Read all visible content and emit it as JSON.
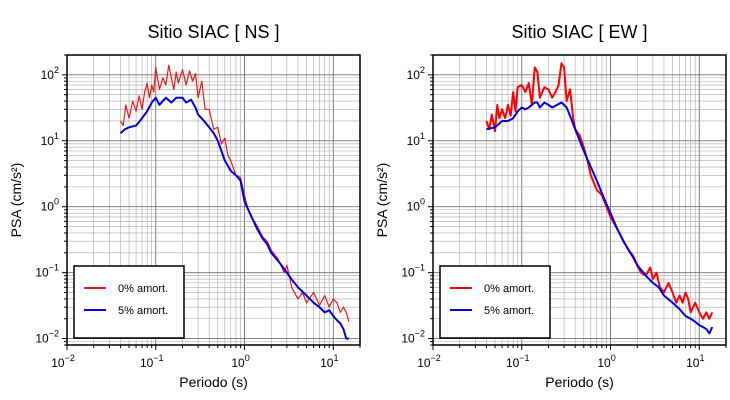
{
  "chart_data": [
    {
      "type": "line",
      "title": "Sitio SIAC [ NS ]",
      "xlabel": "Periodo (s)",
      "ylabel": "PSA (cm/s²)",
      "xscale": "log",
      "yscale": "log",
      "xlim": [
        0.01,
        20
      ],
      "ylim": [
        0.008,
        200
      ],
      "grid": true,
      "legend_position": "bottom-left",
      "xticks": [
        {
          "value": 0.01,
          "base": "10",
          "exp": "−2"
        },
        {
          "value": 0.1,
          "base": "10",
          "exp": "−1"
        },
        {
          "value": 1,
          "base": "10",
          "exp": "0"
        },
        {
          "value": 10,
          "base": "10",
          "exp": "1"
        }
      ],
      "yticks": [
        {
          "value": 0.01,
          "base": "10",
          "exp": "−2"
        },
        {
          "value": 0.1,
          "base": "10",
          "exp": "−1"
        },
        {
          "value": 1,
          "base": "10",
          "exp": "0"
        },
        {
          "value": 10,
          "base": "10",
          "exp": "1"
        },
        {
          "value": 100,
          "base": "10",
          "exp": "2"
        }
      ],
      "series": [
        {
          "name": "0% amort.",
          "color": "#e41a1c",
          "width": 1.2,
          "points": [
            [
              0.04,
              20
            ],
            [
              0.043,
              17
            ],
            [
              0.046,
              35
            ],
            [
              0.05,
              22
            ],
            [
              0.055,
              40
            ],
            [
              0.06,
              28
            ],
            [
              0.065,
              48
            ],
            [
              0.07,
              30
            ],
            [
              0.075,
              55
            ],
            [
              0.08,
              75
            ],
            [
              0.085,
              45
            ],
            [
              0.09,
              70
            ],
            [
              0.095,
              55
            ],
            [
              0.1,
              130
            ],
            [
              0.11,
              60
            ],
            [
              0.12,
              90
            ],
            [
              0.13,
              70
            ],
            [
              0.14,
              140
            ],
            [
              0.15,
              90
            ],
            [
              0.16,
              60
            ],
            [
              0.17,
              110
            ],
            [
              0.18,
              75
            ],
            [
              0.2,
              120
            ],
            [
              0.22,
              70
            ],
            [
              0.24,
              115
            ],
            [
              0.26,
              80
            ],
            [
              0.28,
              105
            ],
            [
              0.3,
              45
            ],
            [
              0.33,
              80
            ],
            [
              0.36,
              30
            ],
            [
              0.4,
              30
            ],
            [
              0.45,
              15
            ],
            [
              0.5,
              16
            ],
            [
              0.55,
              9
            ],
            [
              0.6,
              11
            ],
            [
              0.65,
              6
            ],
            [
              0.7,
              5
            ],
            [
              0.8,
              3
            ],
            [
              0.9,
              2.8
            ],
            [
              1.0,
              1.5
            ],
            [
              1.1,
              0.9
            ],
            [
              1.2,
              0.7
            ],
            [
              1.4,
              0.5
            ],
            [
              1.6,
              0.35
            ],
            [
              1.8,
              0.3
            ],
            [
              2.0,
              0.22
            ],
            [
              2.4,
              0.16
            ],
            [
              2.8,
              0.1
            ],
            [
              3.0,
              0.13
            ],
            [
              3.4,
              0.06
            ],
            [
              4.0,
              0.04
            ],
            [
              4.5,
              0.05
            ],
            [
              5.0,
              0.035
            ],
            [
              6.0,
              0.05
            ],
            [
              7.0,
              0.032
            ],
            [
              8.0,
              0.045
            ],
            [
              9.0,
              0.03
            ],
            [
              10.0,
              0.04
            ],
            [
              11.0,
              0.035
            ],
            [
              12.0,
              0.025
            ],
            [
              13.0,
              0.03
            ],
            [
              14.0,
              0.025
            ],
            [
              15.0,
              0.018
            ]
          ]
        },
        {
          "name": "5% amort.",
          "color": "#0000e6",
          "width": 2,
          "points": [
            [
              0.04,
              13
            ],
            [
              0.045,
              15
            ],
            [
              0.05,
              16
            ],
            [
              0.06,
              17
            ],
            [
              0.07,
              22
            ],
            [
              0.08,
              28
            ],
            [
              0.09,
              38
            ],
            [
              0.1,
              45
            ],
            [
              0.11,
              35
            ],
            [
              0.12,
              40
            ],
            [
              0.13,
              45
            ],
            [
              0.15,
              38
            ],
            [
              0.17,
              45
            ],
            [
              0.2,
              45
            ],
            [
              0.22,
              38
            ],
            [
              0.25,
              42
            ],
            [
              0.28,
              32
            ],
            [
              0.3,
              25
            ],
            [
              0.35,
              20
            ],
            [
              0.4,
              16
            ],
            [
              0.45,
              13
            ],
            [
              0.5,
              10
            ],
            [
              0.55,
              7
            ],
            [
              0.6,
              5
            ],
            [
              0.7,
              3.5
            ],
            [
              0.8,
              3
            ],
            [
              0.9,
              2.5
            ],
            [
              1.0,
              1.2
            ],
            [
              1.2,
              0.7
            ],
            [
              1.4,
              0.45
            ],
            [
              1.6,
              0.33
            ],
            [
              1.8,
              0.27
            ],
            [
              2.0,
              0.2
            ],
            [
              2.5,
              0.14
            ],
            [
              3.0,
              0.1
            ],
            [
              3.5,
              0.075
            ],
            [
              4.0,
              0.06
            ],
            [
              5.0,
              0.045
            ],
            [
              6.0,
              0.035
            ],
            [
              7.0,
              0.03
            ],
            [
              8.0,
              0.025
            ],
            [
              9.0,
              0.027
            ],
            [
              10.0,
              0.022
            ],
            [
              11.0,
              0.019
            ],
            [
              12.0,
              0.017
            ],
            [
              13.0,
              0.014
            ],
            [
              14.0,
              0.01
            ],
            [
              15.0,
              0.01
            ]
          ]
        }
      ]
    },
    {
      "type": "line",
      "title": "Sitio SIAC [ EW ]",
      "xlabel": "Periodo (s)",
      "ylabel": "PSA (cm/s²)",
      "xscale": "log",
      "yscale": "log",
      "xlim": [
        0.01,
        20
      ],
      "ylim": [
        0.008,
        200
      ],
      "grid": true,
      "legend_position": "bottom-left",
      "xticks": [
        {
          "value": 0.01,
          "base": "10",
          "exp": "−2"
        },
        {
          "value": 0.1,
          "base": "10",
          "exp": "−1"
        },
        {
          "value": 1,
          "base": "10",
          "exp": "0"
        },
        {
          "value": 10,
          "base": "10",
          "exp": "1"
        }
      ],
      "yticks": [
        {
          "value": 0.01,
          "base": "10",
          "exp": "−2"
        },
        {
          "value": 0.1,
          "base": "10",
          "exp": "−1"
        },
        {
          "value": 1,
          "base": "10",
          "exp": "0"
        },
        {
          "value": 10,
          "base": "10",
          "exp": "1"
        },
        {
          "value": 100,
          "base": "10",
          "exp": "2"
        }
      ],
      "series": [
        {
          "name": "0% amort.",
          "color": "#ff0000",
          "width": 2,
          "points": [
            [
              0.04,
              20
            ],
            [
              0.043,
              15
            ],
            [
              0.046,
              25
            ],
            [
              0.05,
              14
            ],
            [
              0.053,
              35
            ],
            [
              0.056,
              22
            ],
            [
              0.06,
              30
            ],
            [
              0.065,
              22
            ],
            [
              0.07,
              35
            ],
            [
              0.075,
              24
            ],
            [
              0.08,
              55
            ],
            [
              0.085,
              28
            ],
            [
              0.09,
              65
            ],
            [
              0.1,
              70
            ],
            [
              0.11,
              55
            ],
            [
              0.12,
              75
            ],
            [
              0.13,
              35
            ],
            [
              0.14,
              130
            ],
            [
              0.15,
              110
            ],
            [
              0.16,
              45
            ],
            [
              0.18,
              65
            ],
            [
              0.2,
              60
            ],
            [
              0.22,
              45
            ],
            [
              0.24,
              55
            ],
            [
              0.26,
              70
            ],
            [
              0.28,
              150
            ],
            [
              0.3,
              130
            ],
            [
              0.32,
              40
            ],
            [
              0.35,
              60
            ],
            [
              0.38,
              22
            ],
            [
              0.4,
              15
            ],
            [
              0.45,
              12
            ],
            [
              0.5,
              8
            ],
            [
              0.55,
              5
            ],
            [
              0.6,
              3
            ],
            [
              0.7,
              1.8
            ],
            [
              0.8,
              1.5
            ],
            [
              0.9,
              1
            ],
            [
              1.0,
              0.7
            ],
            [
              1.2,
              0.45
            ],
            [
              1.4,
              0.3
            ],
            [
              1.6,
              0.22
            ],
            [
              1.8,
              0.18
            ],
            [
              2.0,
              0.13
            ],
            [
              2.2,
              0.1
            ],
            [
              2.5,
              0.09
            ],
            [
              2.8,
              0.12
            ],
            [
              3.0,
              0.08
            ],
            [
              3.3,
              0.1
            ],
            [
              3.6,
              0.06
            ],
            [
              4.0,
              0.05
            ],
            [
              4.5,
              0.07
            ],
            [
              5.0,
              0.05
            ],
            [
              5.5,
              0.035
            ],
            [
              6.0,
              0.045
            ],
            [
              6.5,
              0.035
            ],
            [
              7.0,
              0.05
            ],
            [
              7.5,
              0.04
            ],
            [
              8.0,
              0.025
            ],
            [
              9.0,
              0.035
            ],
            [
              10.0,
              0.025
            ],
            [
              11.0,
              0.02
            ],
            [
              12.0,
              0.025
            ],
            [
              13.0,
              0.02
            ],
            [
              14.0,
              0.025
            ]
          ]
        },
        {
          "name": "5% amort.",
          "color": "#0000e6",
          "width": 2,
          "points": [
            [
              0.04,
              15
            ],
            [
              0.05,
              16
            ],
            [
              0.06,
              20
            ],
            [
              0.07,
              20
            ],
            [
              0.08,
              22
            ],
            [
              0.09,
              28
            ],
            [
              0.1,
              32
            ],
            [
              0.11,
              30
            ],
            [
              0.12,
              32
            ],
            [
              0.13,
              35
            ],
            [
              0.14,
              38
            ],
            [
              0.15,
              38
            ],
            [
              0.16,
              32
            ],
            [
              0.18,
              38
            ],
            [
              0.2,
              35
            ],
            [
              0.22,
              32
            ],
            [
              0.25,
              35
            ],
            [
              0.28,
              38
            ],
            [
              0.3,
              35
            ],
            [
              0.32,
              32
            ],
            [
              0.35,
              24
            ],
            [
              0.4,
              15
            ],
            [
              0.45,
              10
            ],
            [
              0.5,
              7
            ],
            [
              0.6,
              4
            ],
            [
              0.7,
              2.5
            ],
            [
              0.8,
              1.6
            ],
            [
              0.9,
              1.1
            ],
            [
              1.0,
              0.8
            ],
            [
              1.2,
              0.45
            ],
            [
              1.4,
              0.3
            ],
            [
              1.6,
              0.22
            ],
            [
              1.8,
              0.17
            ],
            [
              2.0,
              0.13
            ],
            [
              2.5,
              0.09
            ],
            [
              3.0,
              0.07
            ],
            [
              3.5,
              0.06
            ],
            [
              4.0,
              0.045
            ],
            [
              5.0,
              0.035
            ],
            [
              6.0,
              0.028
            ],
            [
              7.0,
              0.022
            ],
            [
              8.0,
              0.02
            ],
            [
              9.0,
              0.018
            ],
            [
              10.0,
              0.016
            ],
            [
              11.0,
              0.015
            ],
            [
              12.0,
              0.014
            ],
            [
              13.0,
              0.012
            ],
            [
              14.0,
              0.015
            ]
          ]
        }
      ]
    }
  ]
}
